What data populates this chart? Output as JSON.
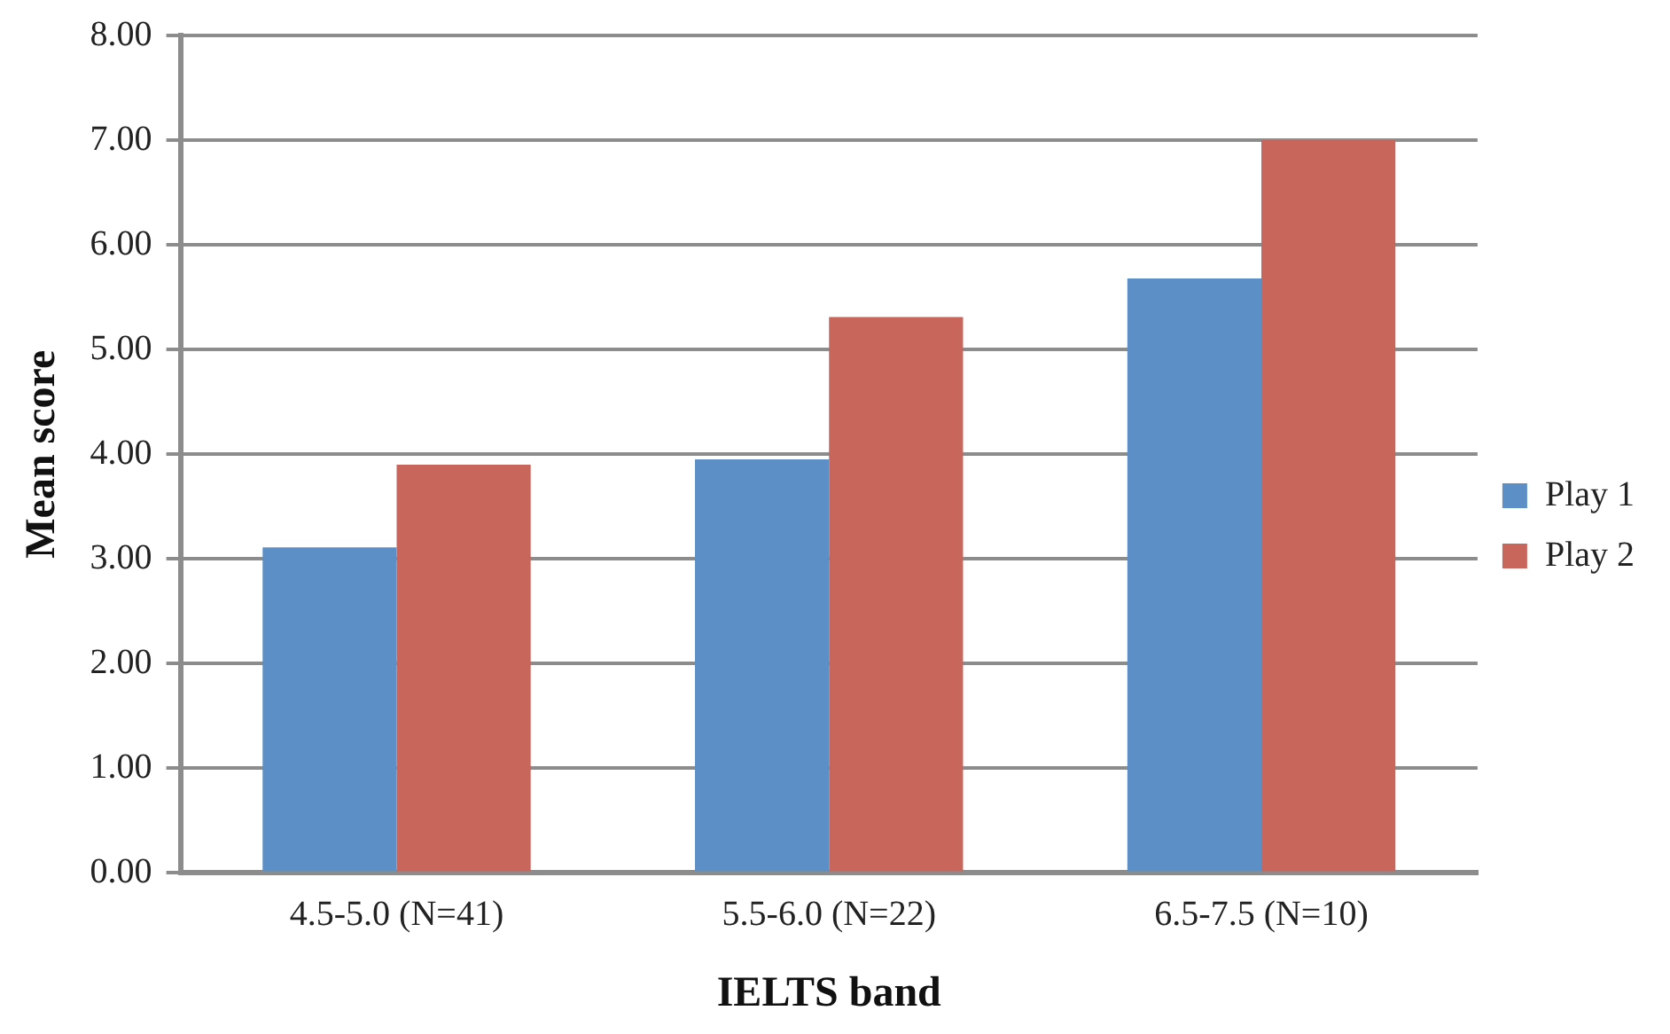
{
  "chart_data": {
    "type": "bar",
    "xlabel": "IELTS band",
    "ylabel": "Mean score",
    "categories": [
      "4.5-5.0 (N=41)",
      "5.5-6.0 (N=22)",
      "6.5-7.5 (N=10)"
    ],
    "series": [
      {
        "name": "Play 1",
        "color": "#5b8fc5",
        "values": [
          3.11,
          3.95,
          5.68
        ]
      },
      {
        "name": "Play 2",
        "color": "#c9665c",
        "values": [
          3.9,
          5.31,
          7.0
        ]
      }
    ],
    "ylim": [
      0,
      8
    ],
    "yticks": [
      {
        "value": 0,
        "label": "0.00"
      },
      {
        "value": 1,
        "label": "1.00"
      },
      {
        "value": 2,
        "label": "2.00"
      },
      {
        "value": 3,
        "label": "3.00"
      },
      {
        "value": 4,
        "label": "4.00"
      },
      {
        "value": 5,
        "label": "5.00"
      },
      {
        "value": 6,
        "label": "6.00"
      },
      {
        "value": 7,
        "label": "7.00"
      },
      {
        "value": 8,
        "label": "8.00"
      }
    ],
    "grid": "y",
    "legend": "right"
  }
}
